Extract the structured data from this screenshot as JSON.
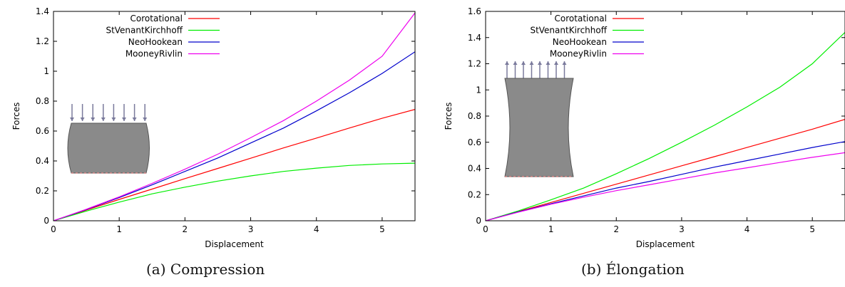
{
  "chart_data": [
    {
      "type": "line",
      "caption": "(a) Compression",
      "xlabel": "Displacement",
      "ylabel": "Forces",
      "xlim": [
        0,
        5.5
      ],
      "ylim": [
        0,
        1.4
      ],
      "xticks": [
        0,
        1,
        2,
        3,
        4,
        5
      ],
      "yticks": [
        0,
        0.2,
        0.4,
        0.6,
        0.8,
        1,
        1.2,
        1.4
      ],
      "legend_position": "top-left",
      "inset": "compressed-specimen-with-downward-arrows",
      "series": [
        {
          "name": "Corotational",
          "color": "#ff0000",
          "x": [
            0,
            0.5,
            1,
            1.5,
            2,
            2.5,
            3,
            3.5,
            4,
            4.5,
            5,
            5.5
          ],
          "y": [
            0,
            0.072,
            0.143,
            0.212,
            0.282,
            0.35,
            0.418,
            0.487,
            0.553,
            0.62,
            0.685,
            0.745
          ]
        },
        {
          "name": "StVenantKirchhoff",
          "color": "#00ee00",
          "x": [
            0,
            0.5,
            1,
            1.5,
            2,
            2.5,
            3,
            3.5,
            4,
            4.5,
            5,
            5.5
          ],
          "y": [
            0,
            0.065,
            0.125,
            0.18,
            0.225,
            0.265,
            0.3,
            0.33,
            0.352,
            0.37,
            0.38,
            0.385
          ]
        },
        {
          "name": "NeoHookean",
          "color": "#0000cc",
          "x": [
            0,
            0.5,
            1,
            1.5,
            2,
            2.5,
            3,
            3.5,
            4,
            4.5,
            5,
            5.5
          ],
          "y": [
            0,
            0.075,
            0.155,
            0.24,
            0.33,
            0.42,
            0.52,
            0.62,
            0.735,
            0.855,
            0.985,
            1.13
          ]
        },
        {
          "name": "MooneyRivlin",
          "color": "#ee00ee",
          "x": [
            0,
            0.5,
            1,
            1.5,
            2,
            2.5,
            3,
            3.5,
            4,
            4.5,
            5,
            5.5
          ],
          "y": [
            0,
            0.077,
            0.16,
            0.25,
            0.345,
            0.445,
            0.555,
            0.67,
            0.8,
            0.94,
            1.1,
            1.39
          ]
        }
      ]
    },
    {
      "type": "line",
      "caption": "(b) Élongation",
      "xlabel": "Displacement",
      "ylabel": "Forces",
      "xlim": [
        0,
        5.5
      ],
      "ylim": [
        0,
        1.6
      ],
      "xticks": [
        0,
        1,
        2,
        3,
        4,
        5
      ],
      "yticks": [
        0,
        0.2,
        0.4,
        0.6,
        0.8,
        1,
        1.2,
        1.4,
        1.6
      ],
      "legend_position": "top-left",
      "inset": "elongated-specimen-with-upward-arrows",
      "series": [
        {
          "name": "Corotational",
          "color": "#ff0000",
          "x": [
            0,
            0.5,
            1,
            1.5,
            2,
            2.5,
            3,
            3.5,
            4,
            4.5,
            5,
            5.5
          ],
          "y": [
            0,
            0.07,
            0.14,
            0.21,
            0.28,
            0.35,
            0.42,
            0.49,
            0.56,
            0.63,
            0.7,
            0.775
          ]
        },
        {
          "name": "StVenantKirchhoff",
          "color": "#00ee00",
          "x": [
            0,
            0.5,
            1,
            1.5,
            2,
            2.5,
            3,
            3.5,
            4,
            4.5,
            5,
            5.5
          ],
          "y": [
            0,
            0.075,
            0.16,
            0.25,
            0.36,
            0.475,
            0.6,
            0.73,
            0.87,
            1.02,
            1.2,
            1.44
          ]
        },
        {
          "name": "NeoHookean",
          "color": "#0000cc",
          "x": [
            0,
            0.5,
            1,
            1.5,
            2,
            2.5,
            3,
            3.5,
            4,
            4.5,
            5,
            5.5
          ],
          "y": [
            0,
            0.068,
            0.13,
            0.19,
            0.25,
            0.3,
            0.355,
            0.41,
            0.46,
            0.51,
            0.56,
            0.605
          ]
        },
        {
          "name": "MooneyRivlin",
          "color": "#ee00ee",
          "x": [
            0,
            0.5,
            1,
            1.5,
            2,
            2.5,
            3,
            3.5,
            4,
            4.5,
            5,
            5.5
          ],
          "y": [
            0,
            0.066,
            0.126,
            0.18,
            0.23,
            0.275,
            0.32,
            0.365,
            0.405,
            0.445,
            0.485,
            0.52
          ]
        }
      ]
    }
  ]
}
